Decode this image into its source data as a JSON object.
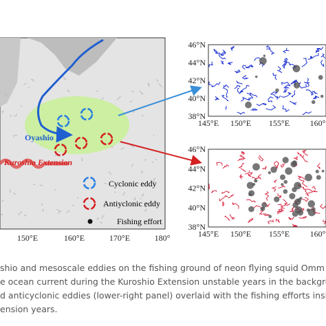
{
  "map": {
    "labels": {
      "oyashio": "Oyashio",
      "kuroshio": "Kuroshio Extension"
    },
    "legend": [
      "Cyclonic eddy",
      "Antiyclonic eddy",
      "Fishing effort"
    ],
    "xticks": [
      "150°E",
      "160°E",
      "170°E",
      "180°"
    ]
  },
  "panels": [
    {
      "yticks": [
        "46°N",
        "44°N",
        "42°N",
        "40°N",
        "38°N"
      ],
      "xticks": [
        "145°E",
        "150°E",
        "155°E",
        "160°"
      ]
    },
    {
      "yticks": [
        "46°N",
        "44°N",
        "42°N",
        "40°N",
        "38°N"
      ],
      "xticks": [
        "145°E",
        "150°E",
        "155°E",
        "160°"
      ]
    }
  ],
  "caption": {
    "lines": [
      "shio and mesoscale eddies on the fishing ground of neon flying squid Omm",
      "e ocean current during the Kuroshio Extension unstable years in the backgro",
      "d anticyclonic eddies (lower-right panel) overlaid with the fishing efforts insi",
      "ension years."
    ]
  }
}
